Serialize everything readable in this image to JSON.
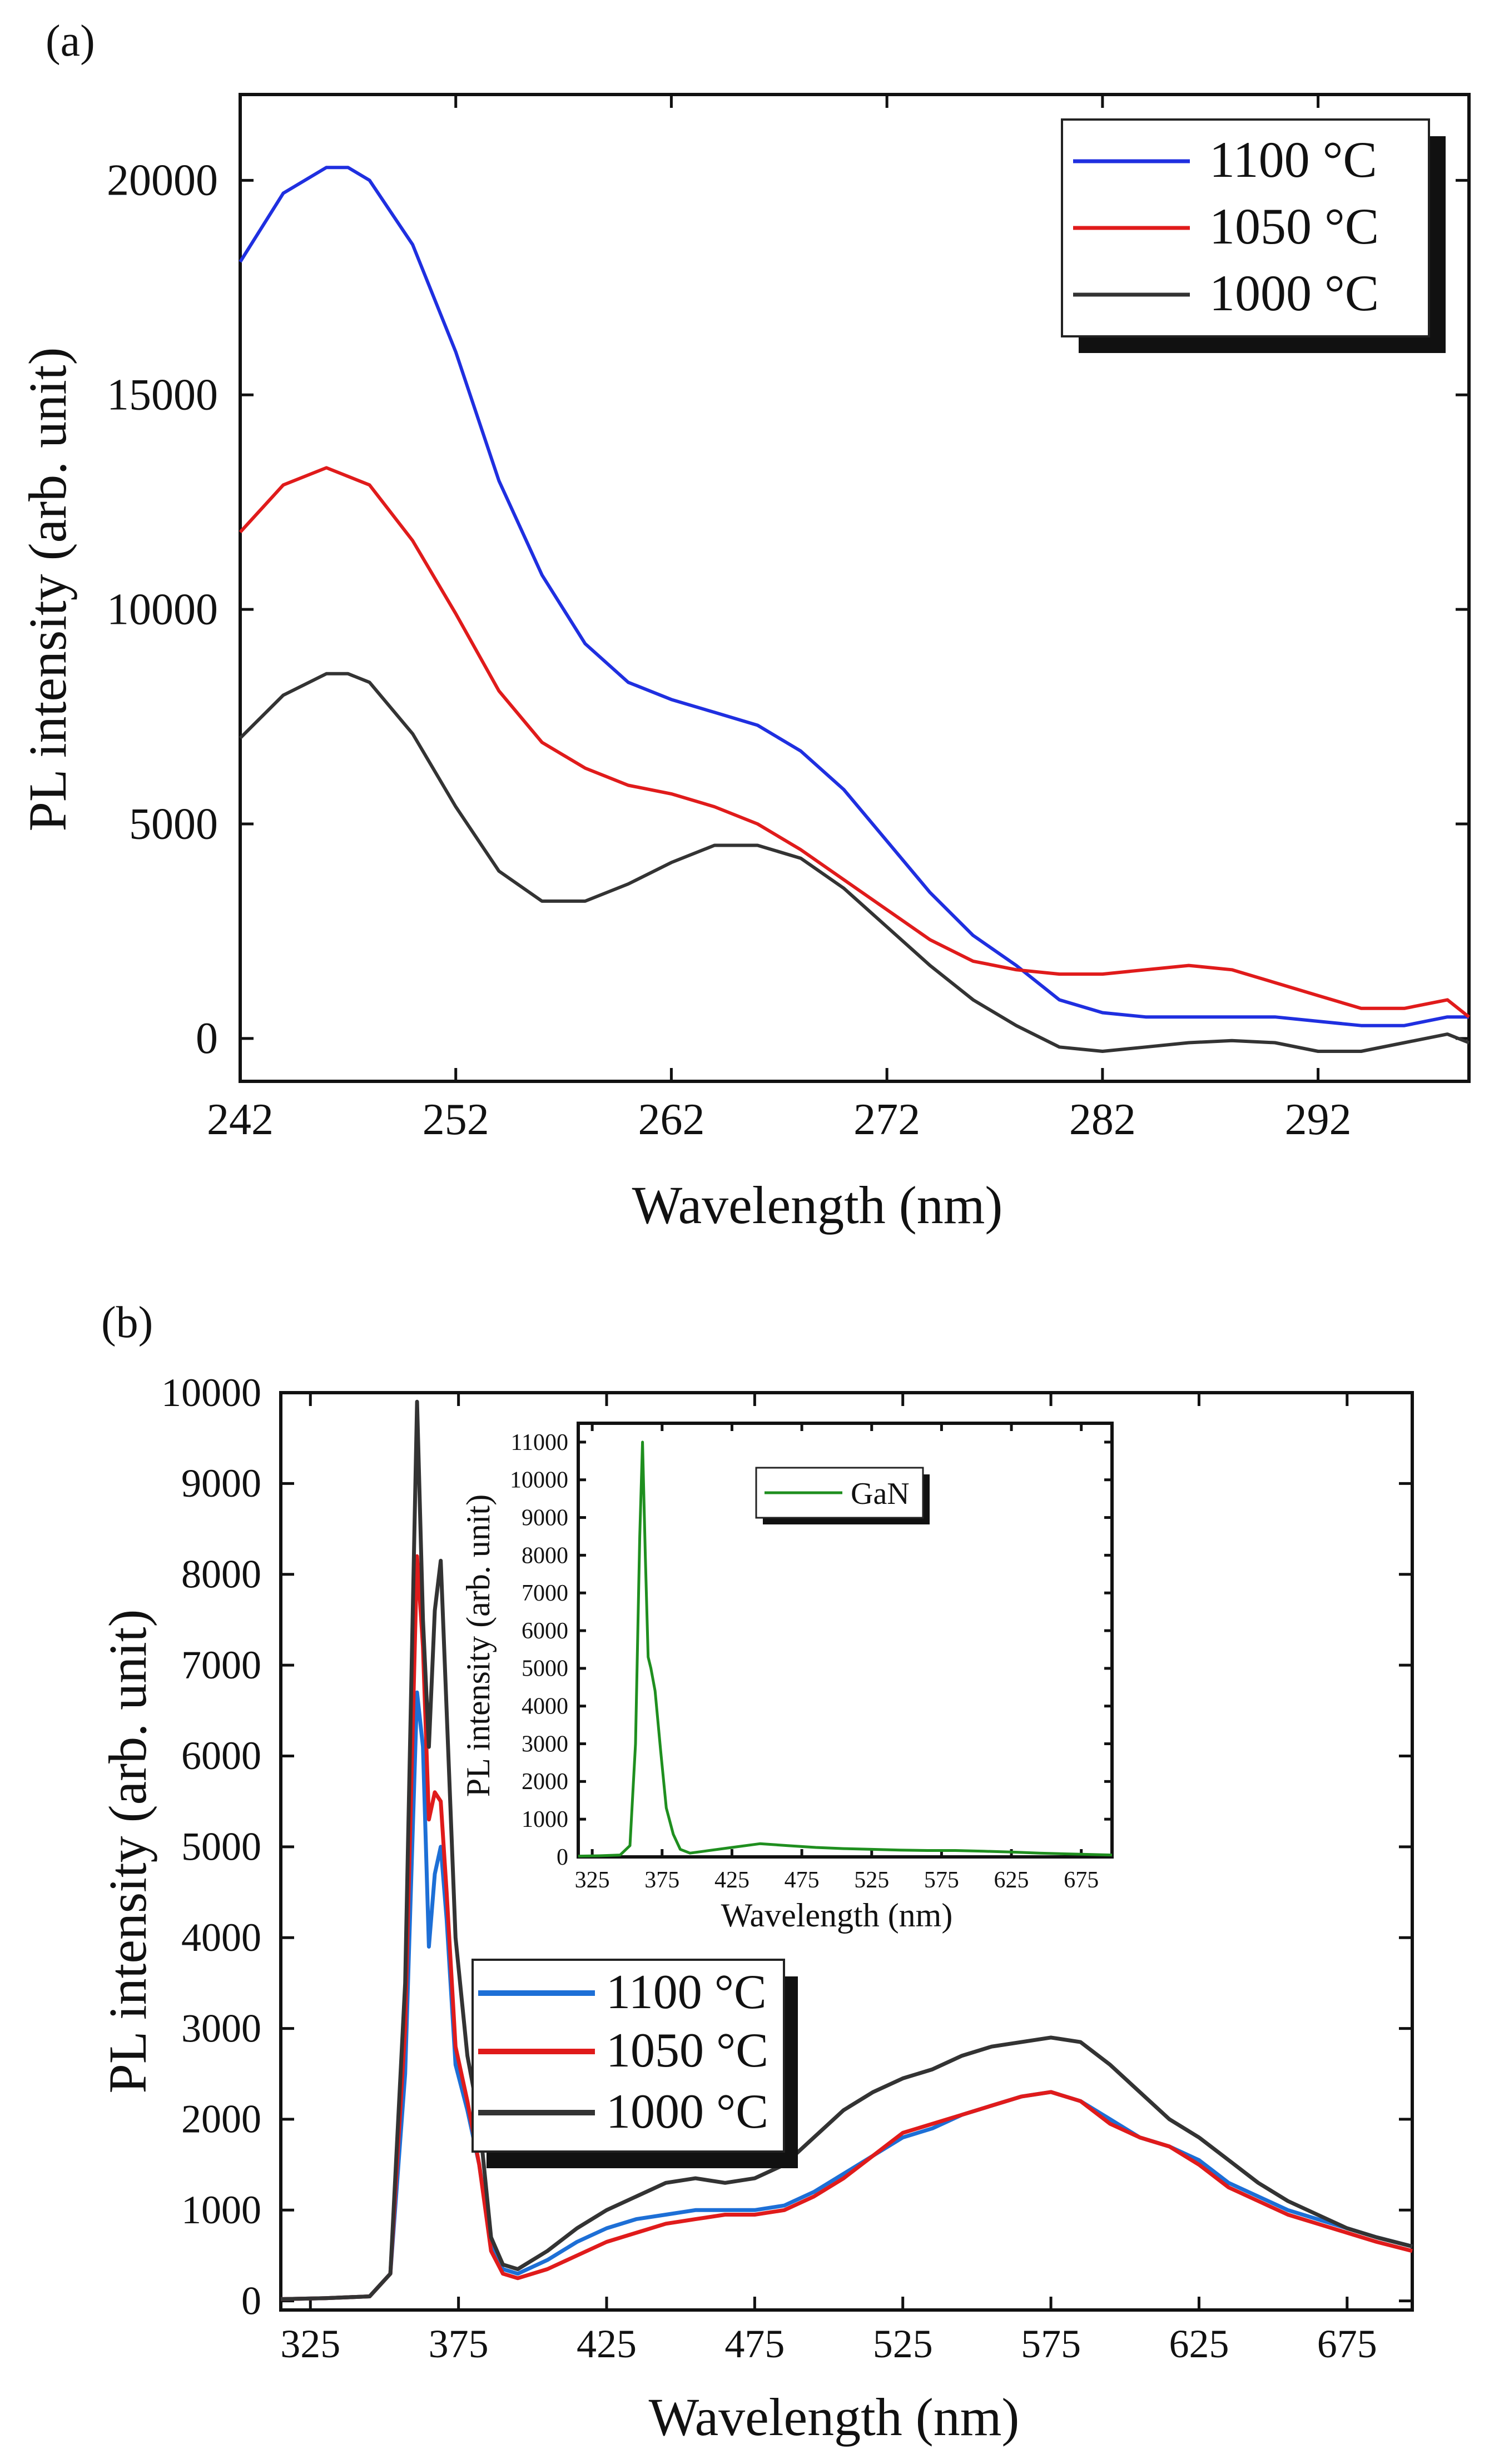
{
  "chart_data": [
    {
      "panel_label": "(a)",
      "type": "line",
      "title": "",
      "xlabel": "Wavelength  (nm)",
      "ylabel": "PL intensity  (arb. unit)",
      "xlim": [
        242,
        299
      ],
      "ylim": [
        -1000,
        22000
      ],
      "xticks": [
        242,
        252,
        262,
        272,
        282,
        292
      ],
      "yticks": [
        0,
        5000,
        10000,
        15000,
        20000
      ],
      "grid": false,
      "legend_position": "top-right",
      "series": [
        {
          "name": "1100 °C",
          "color": "#1f2fe0",
          "x": [
            242,
            244,
            246,
            247,
            248,
            250,
            252,
            254,
            256,
            258,
            260,
            262,
            264,
            266,
            268,
            270,
            272,
            274,
            276,
            278,
            280,
            282,
            284,
            286,
            288,
            290,
            292,
            294,
            296,
            298,
            299
          ],
          "y": [
            18100,
            19700,
            20300,
            20300,
            20000,
            18500,
            16000,
            13000,
            10800,
            9200,
            8300,
            7900,
            7600,
            7300,
            6700,
            5800,
            4600,
            3400,
            2400,
            1700,
            900,
            600,
            500,
            500,
            500,
            500,
            400,
            300,
            300,
            500,
            500
          ]
        },
        {
          "name": "1050 °C",
          "color": "#e01b1b",
          "x": [
            242,
            244,
            246,
            248,
            250,
            252,
            254,
            256,
            258,
            260,
            262,
            264,
            266,
            268,
            270,
            272,
            274,
            276,
            278,
            280,
            282,
            284,
            286,
            288,
            290,
            292,
            294,
            296,
            298,
            299
          ],
          "y": [
            11800,
            12900,
            13300,
            12900,
            11600,
            9900,
            8100,
            6900,
            6300,
            5900,
            5700,
            5400,
            5000,
            4400,
            3700,
            3000,
            2300,
            1800,
            1600,
            1500,
            1500,
            1600,
            1700,
            1600,
            1300,
            1000,
            700,
            700,
            900,
            500
          ]
        },
        {
          "name": "1000 °C",
          "color": "#333333",
          "x": [
            242,
            244,
            246,
            247,
            248,
            250,
            252,
            254,
            256,
            258,
            260,
            262,
            264,
            266,
            268,
            270,
            272,
            274,
            276,
            278,
            280,
            282,
            284,
            286,
            288,
            290,
            292,
            294,
            296,
            298,
            299
          ],
          "y": [
            7000,
            8000,
            8500,
            8500,
            8300,
            7100,
            5400,
            3900,
            3200,
            3200,
            3600,
            4100,
            4500,
            4500,
            4200,
            3500,
            2600,
            1700,
            900,
            300,
            -200,
            -300,
            -200,
            -100,
            -50,
            -100,
            -300,
            -300,
            -100,
            100,
            -100
          ]
        }
      ]
    },
    {
      "panel_label": "(b)",
      "type": "line",
      "title": "",
      "xlabel": "Wavelength  (nm)",
      "ylabel": "PL intensity  (arb. unit)",
      "xlim": [
        315,
        697
      ],
      "ylim": [
        -100,
        10000
      ],
      "xticks": [
        325,
        375,
        425,
        475,
        525,
        575,
        625,
        675
      ],
      "yticks": [
        0,
        1000,
        2000,
        3000,
        4000,
        5000,
        6000,
        7000,
        8000,
        9000,
        10000
      ],
      "grid": false,
      "legend_position": "center-left",
      "series": [
        {
          "name": "1100 °C",
          "color": "#1d6fd6",
          "x": [
            315,
            330,
            345,
            352,
            357,
            361,
            363,
            365,
            367,
            369,
            371,
            374,
            378,
            382,
            386,
            390,
            395,
            405,
            415,
            425,
            435,
            445,
            455,
            465,
            475,
            485,
            495,
            505,
            515,
            525,
            535,
            545,
            555,
            565,
            575,
            585,
            595,
            605,
            615,
            625,
            635,
            645,
            655,
            665,
            675,
            685,
            697
          ],
          "y": [
            20,
            30,
            50,
            300,
            2500,
            6700,
            6100,
            3900,
            4700,
            5000,
            4200,
            2600,
            2100,
            1500,
            600,
            350,
            300,
            450,
            650,
            800,
            900,
            950,
            1000,
            1000,
            1000,
            1050,
            1200,
            1400,
            1600,
            1800,
            1900,
            2050,
            2150,
            2250,
            2300,
            2200,
            2000,
            1800,
            1700,
            1550,
            1300,
            1150,
            1000,
            900,
            800,
            700,
            600
          ]
        },
        {
          "name": "1050 °C",
          "color": "#e01b1b",
          "x": [
            315,
            330,
            345,
            352,
            357,
            361,
            363,
            365,
            367,
            369,
            371,
            374,
            378,
            382,
            386,
            390,
            395,
            405,
            415,
            425,
            435,
            445,
            455,
            465,
            475,
            485,
            495,
            505,
            515,
            525,
            535,
            545,
            555,
            565,
            575,
            585,
            595,
            605,
            615,
            625,
            635,
            645,
            655,
            665,
            675,
            685,
            697
          ],
          "y": [
            20,
            30,
            50,
            300,
            3000,
            8200,
            7200,
            5300,
            5600,
            5500,
            4500,
            2800,
            2200,
            1500,
            550,
            300,
            250,
            350,
            500,
            650,
            750,
            850,
            900,
            950,
            950,
            1000,
            1150,
            1350,
            1600,
            1850,
            1950,
            2050,
            2150,
            2250,
            2300,
            2200,
            1950,
            1800,
            1700,
            1500,
            1250,
            1100,
            950,
            850,
            750,
            650,
            550
          ]
        },
        {
          "name": "1000 °C",
          "color": "#333333",
          "x": [
            315,
            330,
            345,
            352,
            357,
            361,
            363,
            365,
            367,
            369,
            371,
            374,
            378,
            382,
            386,
            390,
            395,
            405,
            415,
            425,
            435,
            445,
            455,
            465,
            475,
            485,
            495,
            505,
            515,
            525,
            535,
            545,
            555,
            565,
            575,
            585,
            595,
            605,
            615,
            625,
            635,
            645,
            655,
            665,
            675,
            685,
            697
          ],
          "y": [
            20,
            30,
            50,
            300,
            3500,
            9900,
            7500,
            6100,
            7600,
            8150,
            6500,
            4000,
            2700,
            2000,
            700,
            400,
            350,
            550,
            800,
            1000,
            1150,
            1300,
            1350,
            1300,
            1350,
            1500,
            1800,
            2100,
            2300,
            2450,
            2550,
            2700,
            2800,
            2850,
            2900,
            2850,
            2600,
            2300,
            2000,
            1800,
            1550,
            1300,
            1100,
            950,
            800,
            700,
            600
          ]
        }
      ],
      "inset": {
        "type": "line",
        "xlabel": "Wavelength  (nm)",
        "ylabel": "PL intensity  (arb. unit)",
        "xlim": [
          315,
          697
        ],
        "ylim": [
          0,
          11500
        ],
        "xticks": [
          325,
          375,
          425,
          475,
          525,
          575,
          625,
          675
        ],
        "yticks": [
          0,
          1000,
          2000,
          3000,
          4000,
          5000,
          6000,
          7000,
          8000,
          9000,
          10000,
          11000
        ],
        "grid": false,
        "legend_position": "top-center",
        "series": [
          {
            "name": "GaN",
            "color": "#1f8f1f",
            "x": [
              315,
              330,
              345,
              352,
              356,
              359,
              361,
              363,
              365,
              367,
              370,
              374,
              378,
              383,
              388,
              395,
              405,
              425,
              445,
              465,
              485,
              505,
              525,
              545,
              565,
              585,
              605,
              625,
              645,
              665,
              685,
              697
            ],
            "y": [
              20,
              30,
              50,
              300,
              3000,
              8500,
              11000,
              8000,
              5300,
              5000,
              4400,
              2800,
              1300,
              600,
              200,
              100,
              150,
              250,
              350,
              300,
              250,
              220,
              200,
              180,
              170,
              170,
              150,
              130,
              100,
              80,
              60,
              50
            ]
          }
        ]
      }
    }
  ]
}
